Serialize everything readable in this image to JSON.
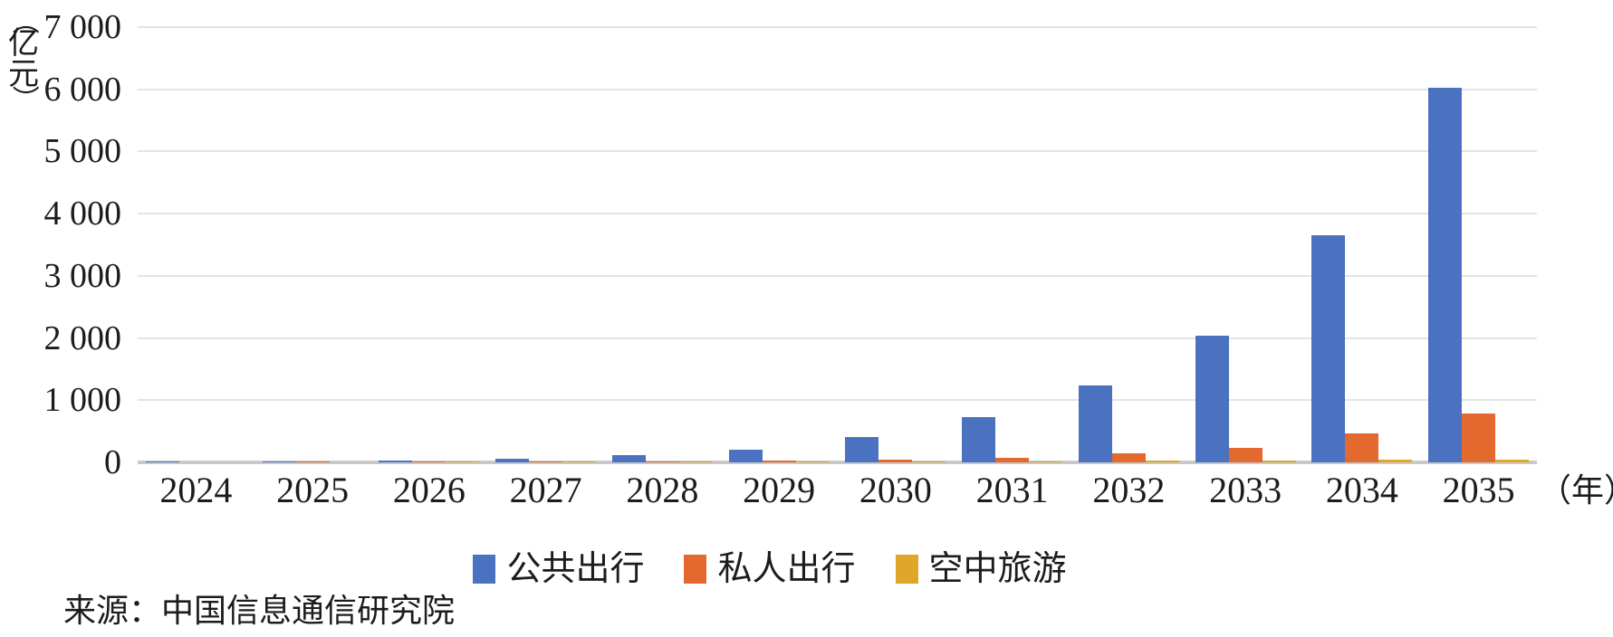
{
  "chart_data": {
    "type": "bar",
    "title": "",
    "categories": [
      "2024",
      "2025",
      "2026",
      "2027",
      "2028",
      "2029",
      "2030",
      "2031",
      "2032",
      "2033",
      "2034",
      "2035"
    ],
    "series": [
      {
        "name": "公共出行",
        "color": "#4a72c0",
        "values": [
          3,
          10,
          28,
          55,
          120,
          210,
          410,
          730,
          1240,
          2040,
          3650,
          6020
        ]
      },
      {
        "name": "私人出行",
        "color": "#e3692f",
        "values": [
          0,
          2,
          5,
          10,
          15,
          25,
          50,
          80,
          140,
          240,
          460,
          780
        ]
      },
      {
        "name": "空中旅游",
        "color": "#dfa62a",
        "values": [
          0,
          0,
          1,
          2,
          5,
          8,
          15,
          20,
          30,
          35,
          40,
          45
        ]
      }
    ],
    "ylim": [
      0,
      7000
    ],
    "ytick_labels": [
      "0",
      "1 000",
      "2 000",
      "3 000",
      "4 000",
      "5 000",
      "6 000",
      "7 000"
    ],
    "y_axis_unit_open": "（",
    "y_axis_unit_chars": [
      "亿",
      "元"
    ],
    "y_axis_unit_close": "）",
    "x_axis_unit": "（年）",
    "grid": true,
    "legend_position": "bottom"
  },
  "colors": {
    "gridline": "#e4e4e4",
    "axis_line": "#c9c9c9",
    "text": "#1c1c1c"
  },
  "source_note": "来源：中国信息通信研究院"
}
